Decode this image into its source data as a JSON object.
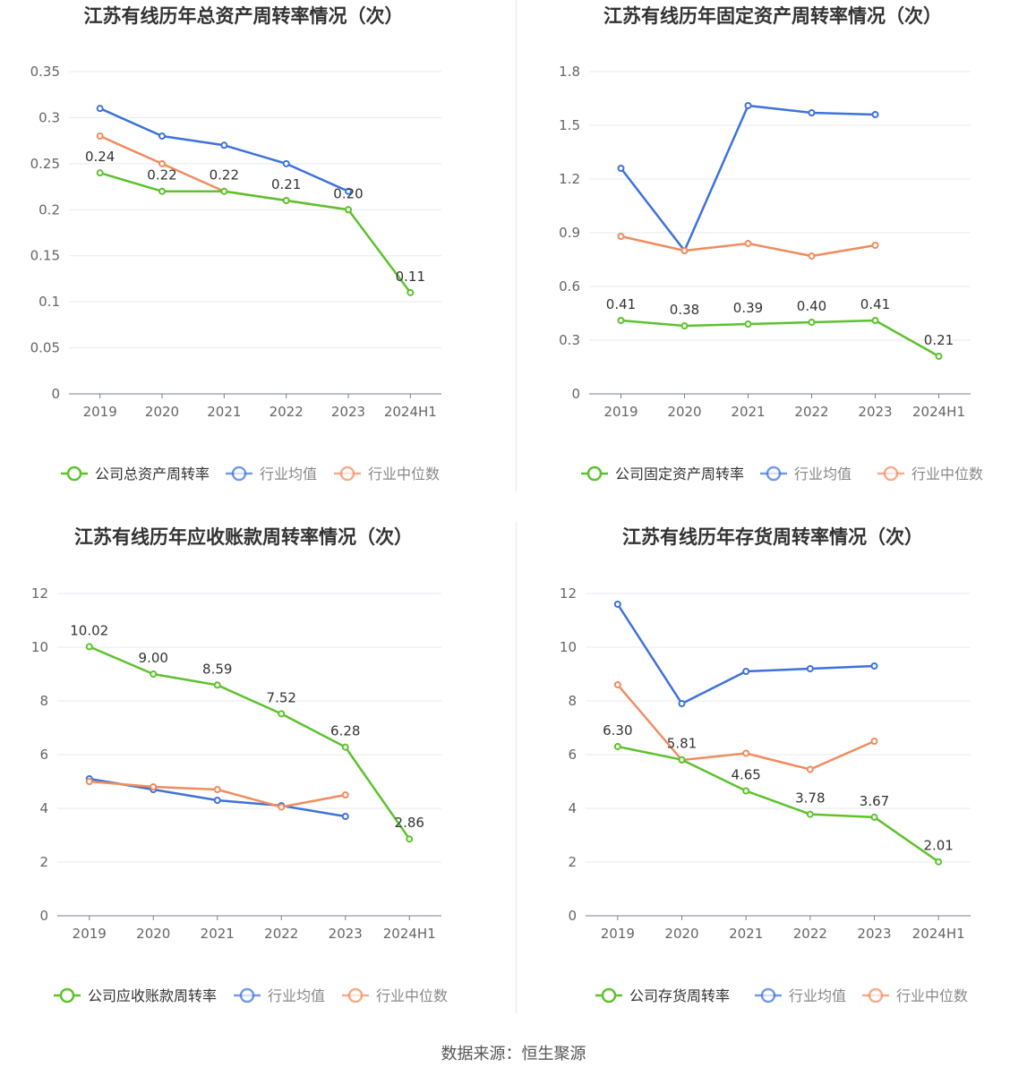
{
  "source_text": "数据来源：恒生聚源",
  "colors": {
    "company": "#5cc22d",
    "avg": "#3d72db",
    "median": "#f08c5e"
  },
  "chart_data": [
    {
      "type": "line",
      "title": "江苏有线历年总资产周转率情况（次）",
      "categories": [
        "2019",
        "2020",
        "2021",
        "2022",
        "2023",
        "2024H1"
      ],
      "ylim": [
        0,
        0.35
      ],
      "yticks": [
        "0",
        "0.05",
        "0.1",
        "0.15",
        "0.2",
        "0.25",
        "0.3",
        "0.35"
      ],
      "series": [
        {
          "name": "公司总资产周转率",
          "key": "company",
          "values": [
            0.24,
            0.22,
            0.22,
            0.21,
            0.2,
            0.11
          ],
          "labels": [
            "0.24",
            "0.22",
            "0.22",
            "0.21",
            "0.20",
            "0.11"
          ]
        },
        {
          "name": "行业均值",
          "key": "avg",
          "values": [
            0.31,
            0.28,
            0.27,
            0.25,
            0.22,
            null
          ]
        },
        {
          "name": "行业中位数",
          "key": "median",
          "values": [
            0.28,
            0.25,
            0.22,
            0.21,
            0.2,
            null
          ]
        }
      ]
    },
    {
      "type": "line",
      "title": "江苏有线历年固定资产周转率情况（次）",
      "categories": [
        "2019",
        "2020",
        "2021",
        "2022",
        "2023",
        "2024H1"
      ],
      "ylim": [
        0,
        1.8
      ],
      "yticks": [
        "0",
        "0.3",
        "0.6",
        "0.9",
        "1.2",
        "1.5",
        "1.8"
      ],
      "series": [
        {
          "name": "公司固定资产周转率",
          "key": "company",
          "values": [
            0.41,
            0.38,
            0.39,
            0.4,
            0.41,
            0.21
          ],
          "labels": [
            "0.41",
            "0.38",
            "0.39",
            "0.40",
            "0.41",
            "0.21"
          ]
        },
        {
          "name": "行业均值",
          "key": "avg",
          "values": [
            1.26,
            0.8,
            1.61,
            1.57,
            1.56,
            null
          ]
        },
        {
          "name": "行业中位数",
          "key": "median",
          "values": [
            0.88,
            0.8,
            0.84,
            0.77,
            0.83,
            null
          ]
        }
      ]
    },
    {
      "type": "line",
      "title": "江苏有线历年应收账款周转率情况（次）",
      "categories": [
        "2019",
        "2020",
        "2021",
        "2022",
        "2023",
        "2024H1"
      ],
      "ylim": [
        0,
        12
      ],
      "yticks": [
        "0",
        "2",
        "4",
        "6",
        "8",
        "10",
        "12"
      ],
      "series": [
        {
          "name": "公司应收账款周转率",
          "key": "company",
          "values": [
            10.02,
            9.0,
            8.59,
            7.52,
            6.28,
            2.86
          ],
          "labels": [
            "10.02",
            "9.00",
            "8.59",
            "7.52",
            "6.28",
            "2.86"
          ]
        },
        {
          "name": "行业均值",
          "key": "avg",
          "values": [
            5.1,
            4.7,
            4.3,
            4.1,
            3.7,
            null
          ]
        },
        {
          "name": "行业中位数",
          "key": "median",
          "values": [
            5.0,
            4.8,
            4.7,
            4.05,
            4.5,
            null
          ]
        }
      ]
    },
    {
      "type": "line",
      "title": "江苏有线历年存货周转率情况（次）",
      "categories": [
        "2019",
        "2020",
        "2021",
        "2022",
        "2023",
        "2024H1"
      ],
      "ylim": [
        0,
        12
      ],
      "yticks": [
        "0",
        "2",
        "4",
        "6",
        "8",
        "10",
        "12"
      ],
      "series": [
        {
          "name": "公司存货周转率",
          "key": "company",
          "values": [
            6.3,
            5.81,
            4.65,
            3.78,
            3.67,
            2.01
          ],
          "labels": [
            "6.30",
            "5.81",
            "4.65",
            "3.78",
            "3.67",
            "2.01"
          ]
        },
        {
          "name": "行业均值",
          "key": "avg",
          "values": [
            11.6,
            7.9,
            9.1,
            9.2,
            9.3,
            null
          ]
        },
        {
          "name": "行业中位数",
          "key": "median",
          "values": [
            8.6,
            5.8,
            6.05,
            5.45,
            6.5,
            null
          ]
        }
      ]
    }
  ]
}
